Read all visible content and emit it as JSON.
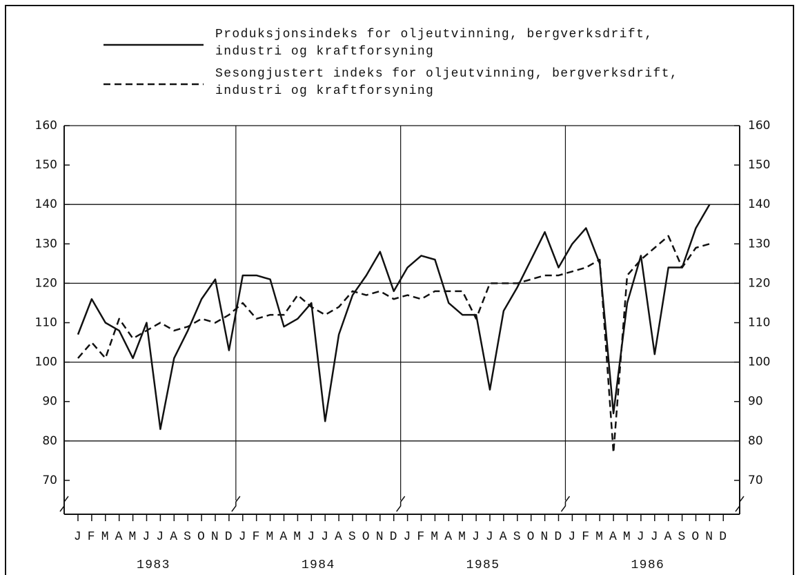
{
  "chart_data": {
    "type": "line",
    "categories": [
      "J",
      "F",
      "M",
      "A",
      "M",
      "J",
      "J",
      "A",
      "S",
      "O",
      "N",
      "D",
      "J",
      "F",
      "M",
      "A",
      "M",
      "J",
      "J",
      "A",
      "S",
      "O",
      "N",
      "D",
      "J",
      "F",
      "M",
      "A",
      "M",
      "J",
      "J",
      "A",
      "S",
      "O",
      "N",
      "D",
      "J",
      "F",
      "M",
      "A",
      "M",
      "J",
      "J",
      "A",
      "S",
      "O",
      "N",
      "D"
    ],
    "years": [
      "1983",
      "1984",
      "1985",
      "1986"
    ],
    "series": [
      {
        "name": "Produksjonsindeks for oljeutvinning, bergverksdrift, industri og kraftforsyning",
        "color": "#111",
        "dash": false,
        "values": [
          107,
          116,
          110,
          108,
          101,
          110,
          83,
          101,
          108,
          116,
          121,
          103,
          122,
          122,
          121,
          109,
          111,
          115,
          85,
          107,
          117,
          122,
          128,
          118,
          124,
          127,
          126,
          115,
          112,
          112,
          93,
          113,
          119,
          126,
          133,
          124,
          130,
          134,
          125,
          87,
          115,
          127,
          102,
          124,
          124,
          134,
          140,
          null
        ]
      },
      {
        "name": "Sesongjustert indeks for oljeutvinning, bergverksdrift, industri og kraftforsyning",
        "color": "#111",
        "dash": true,
        "values": [
          101,
          105,
          101,
          111,
          106,
          108,
          110,
          108,
          109,
          111,
          110,
          112,
          115,
          111,
          112,
          112,
          117,
          114,
          112,
          114,
          118,
          117,
          118,
          116,
          117,
          116,
          118,
          118,
          118,
          111,
          120,
          120,
          120,
          121,
          122,
          122,
          123,
          124,
          126,
          77,
          122,
          126,
          129,
          132,
          124,
          129,
          130,
          null
        ]
      }
    ],
    "ylim": [
      61.4,
      160
    ],
    "yticks": [
      70,
      80,
      90,
      100,
      110,
      120,
      130,
      140,
      150,
      160
    ],
    "grid": true
  }
}
